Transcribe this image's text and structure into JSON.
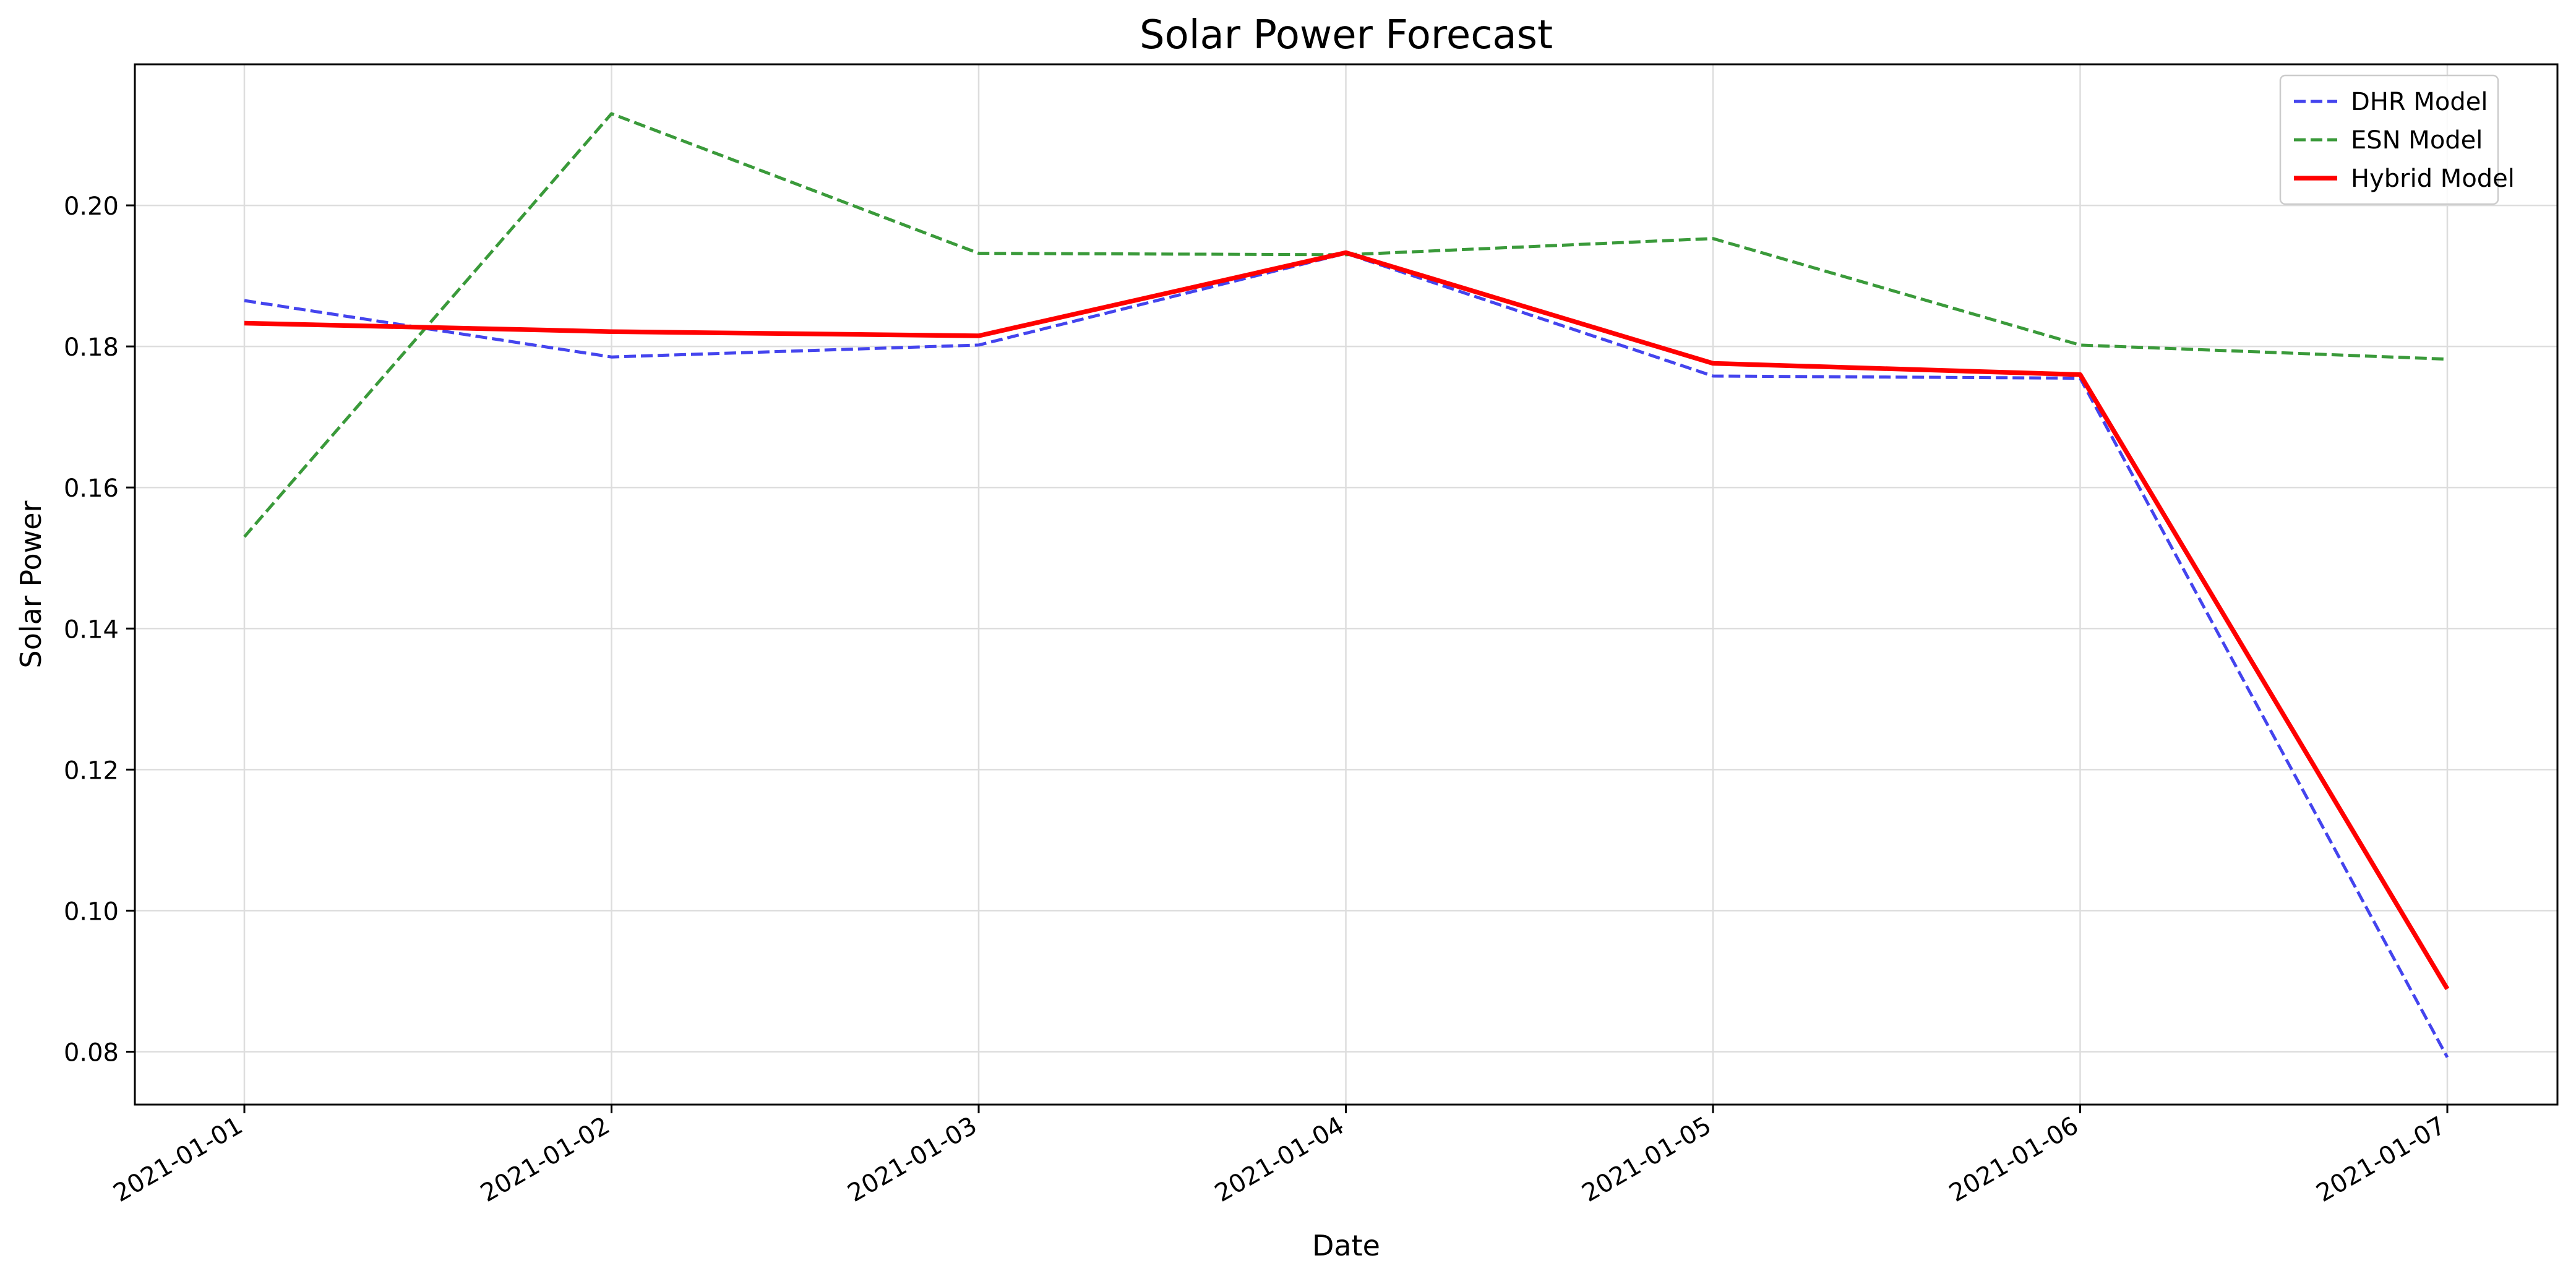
{
  "chart_data": {
    "type": "line",
    "title": "Solar Power Forecast",
    "xlabel": "Date",
    "ylabel": "Solar Power",
    "x": [
      "2021-01-01",
      "2021-01-02",
      "2021-01-03",
      "2021-01-04",
      "2021-01-05",
      "2021-01-06",
      "2021-01-07"
    ],
    "ylim": [
      0.0725,
      0.22
    ],
    "yticks": [
      0.08,
      0.1,
      0.12,
      0.14,
      0.16,
      0.18,
      0.2
    ],
    "ytick_labels": [
      "0.08",
      "0.10",
      "0.12",
      "0.14",
      "0.16",
      "0.18",
      "0.20"
    ],
    "grid": true,
    "legend_position": "top-right",
    "series": [
      {
        "name": "DHR Model",
        "color": "#4444ee",
        "style": "dashed",
        "values": [
          0.1865,
          0.1785,
          0.1802,
          0.1932,
          0.1758,
          0.1755,
          0.0792
        ]
      },
      {
        "name": "ESN Model",
        "color": "#3a9a3a",
        "style": "dashed",
        "values": [
          0.153,
          0.213,
          0.1932,
          0.193,
          0.1953,
          0.1802,
          0.1782
        ]
      },
      {
        "name": "Hybrid Model",
        "color": "#ff0000",
        "style": "solid",
        "values": [
          0.1833,
          0.1821,
          0.1815,
          0.1933,
          0.1776,
          0.176,
          0.0889
        ]
      }
    ]
  }
}
